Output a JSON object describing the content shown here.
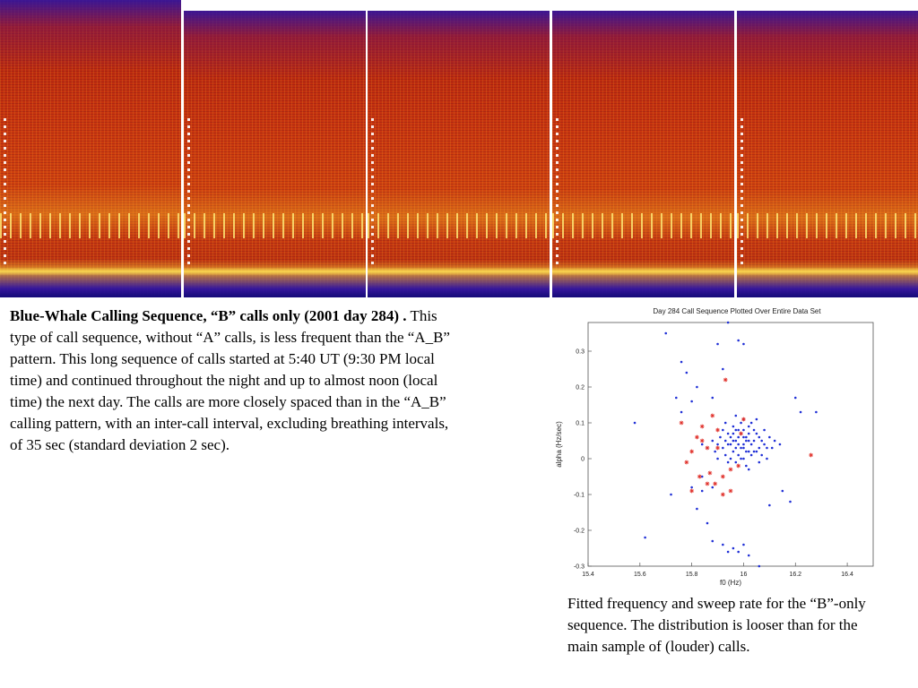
{
  "caption_left": {
    "bold": "Blue-Whale Calling Sequence, “B” calls only (2001 day 284) .",
    "text": "This type of call sequence, without “A” calls, is less frequent than the “A_B” pattern.  This long sequence of calls started at 5:40 UT (9:30 PM local time) and continued throughout the night and up to almost noon (local time) the next day.  The calls are more closely spaced than in the “A_B” calling pattern, with an inter-call interval, excluding breathing intervals, of 35 sec (standard deviation 2 sec)."
  },
  "caption_right": {
    "text": "Fitted frequency and sweep rate for the “B”-only sequence.  The distribution is looser than for the main sample of (louder) calls."
  },
  "colors": {
    "blue_points": "#1f2fd6",
    "red_points": "#e0302a",
    "spectrogram_base": "#c8350f"
  },
  "chart_data": {
    "type": "scatter",
    "title": "Day 284 Call Sequence Plotted Over Entire Data Set",
    "xlabel": "f0 (Hz)",
    "ylabel": "alpha (Hz/sec)",
    "xlim": [
      15.4,
      16.5
    ],
    "ylim": [
      -0.3,
      0.38
    ],
    "xticks": [
      15.4,
      15.6,
      15.8,
      16,
      16.2,
      16.4
    ],
    "yticks": [
      -0.3,
      -0.2,
      -0.1,
      0,
      0.1,
      0.2,
      0.3
    ],
    "grid": false,
    "series": [
      {
        "marker": "dot",
        "color": "#1f2fd6",
        "points": [
          [
            15.96,
            0.05
          ],
          [
            15.98,
            0.04
          ],
          [
            16.0,
            0.06
          ],
          [
            16.02,
            0.05
          ],
          [
            15.97,
            0.03
          ],
          [
            15.99,
            0.07
          ],
          [
            16.01,
            0.02
          ],
          [
            16.03,
            0.04
          ],
          [
            15.95,
            0.06
          ],
          [
            16.04,
            0.05
          ],
          [
            15.94,
            0.04
          ],
          [
            16.06,
            0.03
          ],
          [
            15.93,
            0.05
          ],
          [
            16.05,
            0.07
          ],
          [
            15.98,
            0.01
          ],
          [
            16.0,
            0.08
          ],
          [
            15.96,
            0.02
          ],
          [
            16.02,
            0.09
          ],
          [
            15.99,
            0.0
          ],
          [
            16.01,
            0.06
          ],
          [
            15.92,
            0.03
          ],
          [
            16.07,
            0.05
          ],
          [
            15.97,
            0.08
          ],
          [
            16.03,
            0.01
          ],
          [
            15.95,
            0.0
          ],
          [
            16.05,
            0.02
          ],
          [
            15.91,
            0.06
          ],
          [
            16.08,
            0.04
          ],
          [
            16.0,
            0.03
          ],
          [
            15.98,
            0.06
          ],
          [
            16.02,
            0.02
          ],
          [
            15.96,
            0.09
          ],
          [
            16.04,
            0.08
          ],
          [
            15.94,
            0.07
          ],
          [
            16.06,
            0.06
          ],
          [
            15.9,
            0.04
          ],
          [
            16.09,
            0.03
          ],
          [
            15.97,
            -0.01
          ],
          [
            16.01,
            -0.02
          ],
          [
            15.99,
            0.1
          ],
          [
            16.03,
            0.1
          ],
          [
            15.93,
            0.01
          ],
          [
            16.07,
            0.01
          ],
          [
            15.95,
            0.04
          ],
          [
            16.0,
            0.04
          ],
          [
            15.88,
            0.05
          ],
          [
            16.1,
            0.06
          ],
          [
            15.89,
            0.02
          ],
          [
            16.11,
            0.03
          ],
          [
            15.97,
            0.05
          ],
          [
            16.01,
            0.05
          ],
          [
            15.99,
            0.03
          ],
          [
            16.02,
            0.07
          ],
          [
            15.98,
            0.08
          ],
          [
            16.04,
            0.02
          ],
          [
            15.96,
            0.07
          ],
          [
            15.92,
            0.08
          ],
          [
            16.08,
            0.08
          ],
          [
            15.86,
            0.03
          ],
          [
            16.12,
            0.05
          ],
          [
            15.94,
            -0.01
          ],
          [
            16.06,
            -0.01
          ],
          [
            15.93,
            0.1
          ],
          [
            16.05,
            0.11
          ],
          [
            15.9,
            0.0
          ],
          [
            16.09,
            0.0
          ],
          [
            16.0,
            0.0
          ],
          [
            16.0,
            0.11
          ],
          [
            15.84,
            0.04
          ],
          [
            16.14,
            0.04
          ],
          [
            15.97,
            0.12
          ],
          [
            16.02,
            -0.03
          ],
          [
            15.7,
            0.35
          ],
          [
            15.78,
            0.24
          ],
          [
            15.82,
            0.2
          ],
          [
            15.9,
            0.32
          ],
          [
            15.98,
            0.33
          ],
          [
            16.0,
            0.32
          ],
          [
            16.2,
            0.17
          ],
          [
            15.94,
            0.38
          ],
          [
            15.74,
            0.17
          ],
          [
            15.76,
            0.13
          ],
          [
            15.8,
            0.16
          ],
          [
            16.22,
            0.13
          ],
          [
            16.28,
            0.13
          ],
          [
            15.92,
            0.25
          ],
          [
            15.88,
            0.17
          ],
          [
            15.76,
            0.27
          ],
          [
            15.8,
            -0.08
          ],
          [
            15.84,
            -0.05
          ],
          [
            15.72,
            -0.1
          ],
          [
            15.88,
            -0.08
          ],
          [
            16.15,
            -0.09
          ],
          [
            16.18,
            -0.12
          ],
          [
            15.82,
            -0.14
          ],
          [
            15.84,
            -0.09
          ],
          [
            15.62,
            -0.22
          ],
          [
            15.88,
            -0.23
          ],
          [
            15.92,
            -0.24
          ],
          [
            15.96,
            -0.25
          ],
          [
            16.0,
            -0.24
          ],
          [
            15.94,
            -0.26
          ],
          [
            15.98,
            -0.26
          ],
          [
            16.02,
            -0.27
          ],
          [
            16.06,
            -0.3
          ],
          [
            16.1,
            -0.13
          ],
          [
            15.58,
            0.1
          ],
          [
            15.86,
            -0.18
          ]
        ]
      },
      {
        "marker": "star",
        "color": "#e0302a",
        "points": [
          [
            15.82,
            0.06
          ],
          [
            15.8,
            0.02
          ],
          [
            15.84,
            0.05
          ],
          [
            15.86,
            0.03
          ],
          [
            15.78,
            -0.01
          ],
          [
            15.83,
            -0.05
          ],
          [
            15.87,
            -0.04
          ],
          [
            15.89,
            -0.07
          ],
          [
            15.92,
            -0.05
          ],
          [
            15.95,
            -0.03
          ],
          [
            15.98,
            -0.02
          ],
          [
            15.84,
            0.09
          ],
          [
            15.88,
            0.12
          ],
          [
            15.9,
            0.08
          ],
          [
            15.93,
            0.22
          ],
          [
            16.0,
            0.11
          ],
          [
            15.76,
            0.1
          ],
          [
            15.8,
            -0.09
          ],
          [
            15.86,
            -0.07
          ],
          [
            15.95,
            -0.09
          ],
          [
            15.99,
            0.07
          ],
          [
            16.26,
            0.01
          ],
          [
            15.92,
            -0.1
          ],
          [
            15.9,
            0.03
          ]
        ]
      }
    ]
  }
}
